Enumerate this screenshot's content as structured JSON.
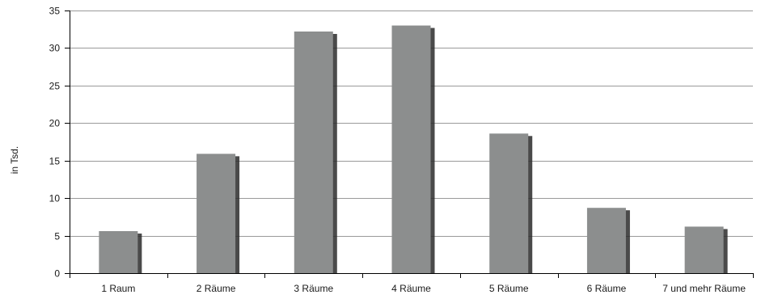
{
  "chart_data": {
    "type": "bar",
    "ylabel": "in Tsd.",
    "xlabel": "",
    "categories": [
      "1 Raum",
      "2 Räume",
      "3 Räume",
      "4 Räume",
      "5 Räume",
      "6 Räume",
      "7 und mehr Räume"
    ],
    "values": [
      5.6,
      15.9,
      32.2,
      33.0,
      18.6,
      8.7,
      6.2
    ],
    "ylim": [
      0,
      35
    ],
    "yticks": [
      0,
      5,
      10,
      15,
      20,
      25,
      30,
      35
    ],
    "grid": true,
    "bar_color": "#8c8e8e",
    "shadow_color": "#2a2a2a"
  }
}
